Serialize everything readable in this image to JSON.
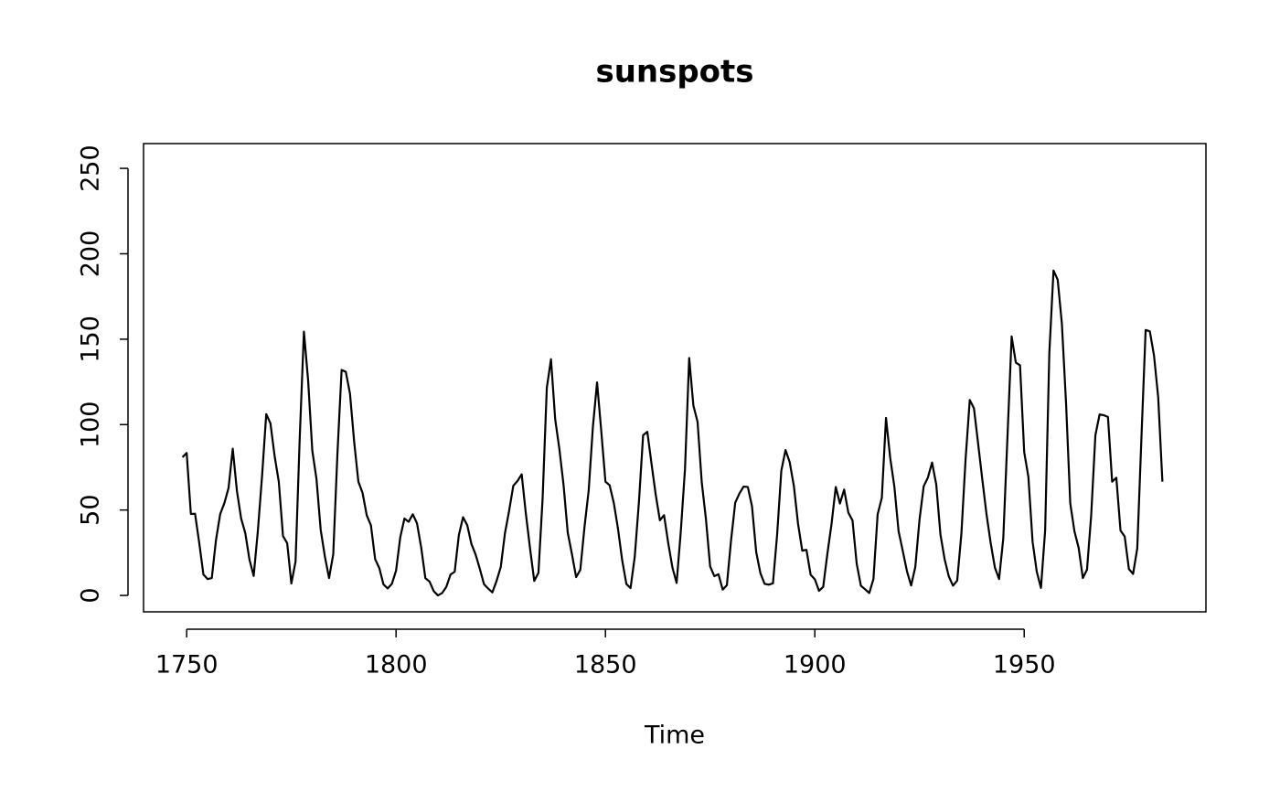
{
  "chart_data": {
    "type": "line",
    "title": "sunspots",
    "x_label": "Time",
    "x": [
      1749,
      1750,
      1751,
      1752,
      1753,
      1754,
      1755,
      1756,
      1757,
      1758,
      1759,
      1760,
      1761,
      1762,
      1763,
      1764,
      1765,
      1766,
      1767,
      1768,
      1769,
      1770,
      1771,
      1772,
      1773,
      1774,
      1775,
      1776,
      1777,
      1778,
      1779,
      1780,
      1781,
      1782,
      1783,
      1784,
      1785,
      1786,
      1787,
      1788,
      1789,
      1790,
      1791,
      1792,
      1793,
      1794,
      1795,
      1796,
      1797,
      1798,
      1799,
      1800,
      1801,
      1802,
      1803,
      1804,
      1805,
      1806,
      1807,
      1808,
      1809,
      1810,
      1811,
      1812,
      1813,
      1814,
      1815,
      1816,
      1817,
      1818,
      1819,
      1820,
      1821,
      1822,
      1823,
      1824,
      1825,
      1826,
      1827,
      1828,
      1829,
      1830,
      1831,
      1832,
      1833,
      1834,
      1835,
      1836,
      1837,
      1838,
      1839,
      1840,
      1841,
      1842,
      1843,
      1844,
      1845,
      1846,
      1847,
      1848,
      1849,
      1850,
      1851,
      1852,
      1853,
      1854,
      1855,
      1856,
      1857,
      1858,
      1859,
      1860,
      1861,
      1862,
      1863,
      1864,
      1865,
      1866,
      1867,
      1868,
      1869,
      1870,
      1871,
      1872,
      1873,
      1874,
      1875,
      1876,
      1877,
      1878,
      1879,
      1880,
      1881,
      1882,
      1883,
      1884,
      1885,
      1886,
      1887,
      1888,
      1889,
      1890,
      1891,
      1892,
      1893,
      1894,
      1895,
      1896,
      1897,
      1898,
      1899,
      1900,
      1901,
      1902,
      1903,
      1904,
      1905,
      1906,
      1907,
      1908,
      1909,
      1910,
      1911,
      1912,
      1913,
      1914,
      1915,
      1916,
      1917,
      1918,
      1919,
      1920,
      1921,
      1922,
      1923,
      1924,
      1925,
      1926,
      1927,
      1928,
      1929,
      1930,
      1931,
      1932,
      1933,
      1934,
      1935,
      1936,
      1937,
      1938,
      1939,
      1940,
      1941,
      1942,
      1943,
      1944,
      1945,
      1946,
      1947,
      1948,
      1949,
      1950,
      1951,
      1952,
      1953,
      1954,
      1955,
      1956,
      1957,
      1958,
      1959,
      1960,
      1961,
      1962,
      1963,
      1964,
      1965,
      1966,
      1967,
      1968,
      1969,
      1970,
      1971,
      1972,
      1973,
      1974,
      1975,
      1976,
      1977,
      1978,
      1979,
      1980,
      1981,
      1982,
      1983
    ],
    "values": [
      80.9,
      83.4,
      47.7,
      47.8,
      30.7,
      12.2,
      9.6,
      10.2,
      32.4,
      47.6,
      54.0,
      62.9,
      85.9,
      61.2,
      45.1,
      36.4,
      20.9,
      11.4,
      37.8,
      69.8,
      106.1,
      100.8,
      81.6,
      66.5,
      34.8,
      30.6,
      7.0,
      19.8,
      92.5,
      154.4,
      125.9,
      84.8,
      68.1,
      38.5,
      22.8,
      10.2,
      24.1,
      82.9,
      132.0,
      130.9,
      118.1,
      89.9,
      66.6,
      60.0,
      46.9,
      41.0,
      21.3,
      16.0,
      6.4,
      4.1,
      6.8,
      14.5,
      34.0,
      45.0,
      43.1,
      47.5,
      42.2,
      28.1,
      10.1,
      8.1,
      2.5,
      0.0,
      1.4,
      5.0,
      12.2,
      13.9,
      35.4,
      45.8,
      41.1,
      30.1,
      23.9,
      15.6,
      6.6,
      4.0,
      1.8,
      8.5,
      16.6,
      36.3,
      49.6,
      64.2,
      67.0,
      70.9,
      47.8,
      27.5,
      8.5,
      13.2,
      56.9,
      121.5,
      138.3,
      103.2,
      85.7,
      64.6,
      36.7,
      24.2,
      10.7,
      15.0,
      40.1,
      61.5,
      98.5,
      124.7,
      96.3,
      66.6,
      64.5,
      54.1,
      39.0,
      20.6,
      6.7,
      4.3,
      22.7,
      54.8,
      93.8,
      95.8,
      77.2,
      59.1,
      44.0,
      47.0,
      30.5,
      16.3,
      7.3,
      37.6,
      74.0,
      139.0,
      111.2,
      101.6,
      66.2,
      44.7,
      17.0,
      11.3,
      12.4,
      3.4,
      6.0,
      32.3,
      54.3,
      59.7,
      63.7,
      63.5,
      52.2,
      25.4,
      13.1,
      6.8,
      6.3,
      7.1,
      35.6,
      73.0,
      85.1,
      78.0,
      64.0,
      41.8,
      26.2,
      26.7,
      12.1,
      9.5,
      2.7,
      5.0,
      24.4,
      42.0,
      63.5,
      53.8,
      62.0,
      48.5,
      43.9,
      18.6,
      5.7,
      3.6,
      1.4,
      9.6,
      47.4,
      57.1,
      103.9,
      80.6,
      63.6,
      37.6,
      26.1,
      14.2,
      5.8,
      16.7,
      44.3,
      63.9,
      69.0,
      77.8,
      64.9,
      35.7,
      21.2,
      11.1,
      5.7,
      8.7,
      36.1,
      79.7,
      114.4,
      109.6,
      88.8,
      67.8,
      47.5,
      30.6,
      16.3,
      9.6,
      33.2,
      92.6,
      151.6,
      136.3,
      134.7,
      83.9,
      69.4,
      31.5,
      13.9,
      4.4,
      38.0,
      141.7,
      190.2,
      184.8,
      159.0,
      112.3,
      53.9,
      37.5,
      27.9,
      10.2,
      15.1,
      47.0,
      93.8,
      105.9,
      105.5,
      104.5,
      66.6,
      68.9,
      38.0,
      34.5,
      15.5,
      12.6,
      27.5,
      92.5,
      155.4,
      154.6,
      140.4,
      115.9,
      66.6
    ],
    "color": "#000000",
    "xlim": [
      1739.7,
      1993.4
    ],
    "ylim": [
      -9.6,
      264.5
    ],
    "xticks": [
      1750,
      1800,
      1850,
      1900,
      1950
    ],
    "yticks": [
      0,
      50,
      100,
      150,
      200,
      250
    ]
  }
}
